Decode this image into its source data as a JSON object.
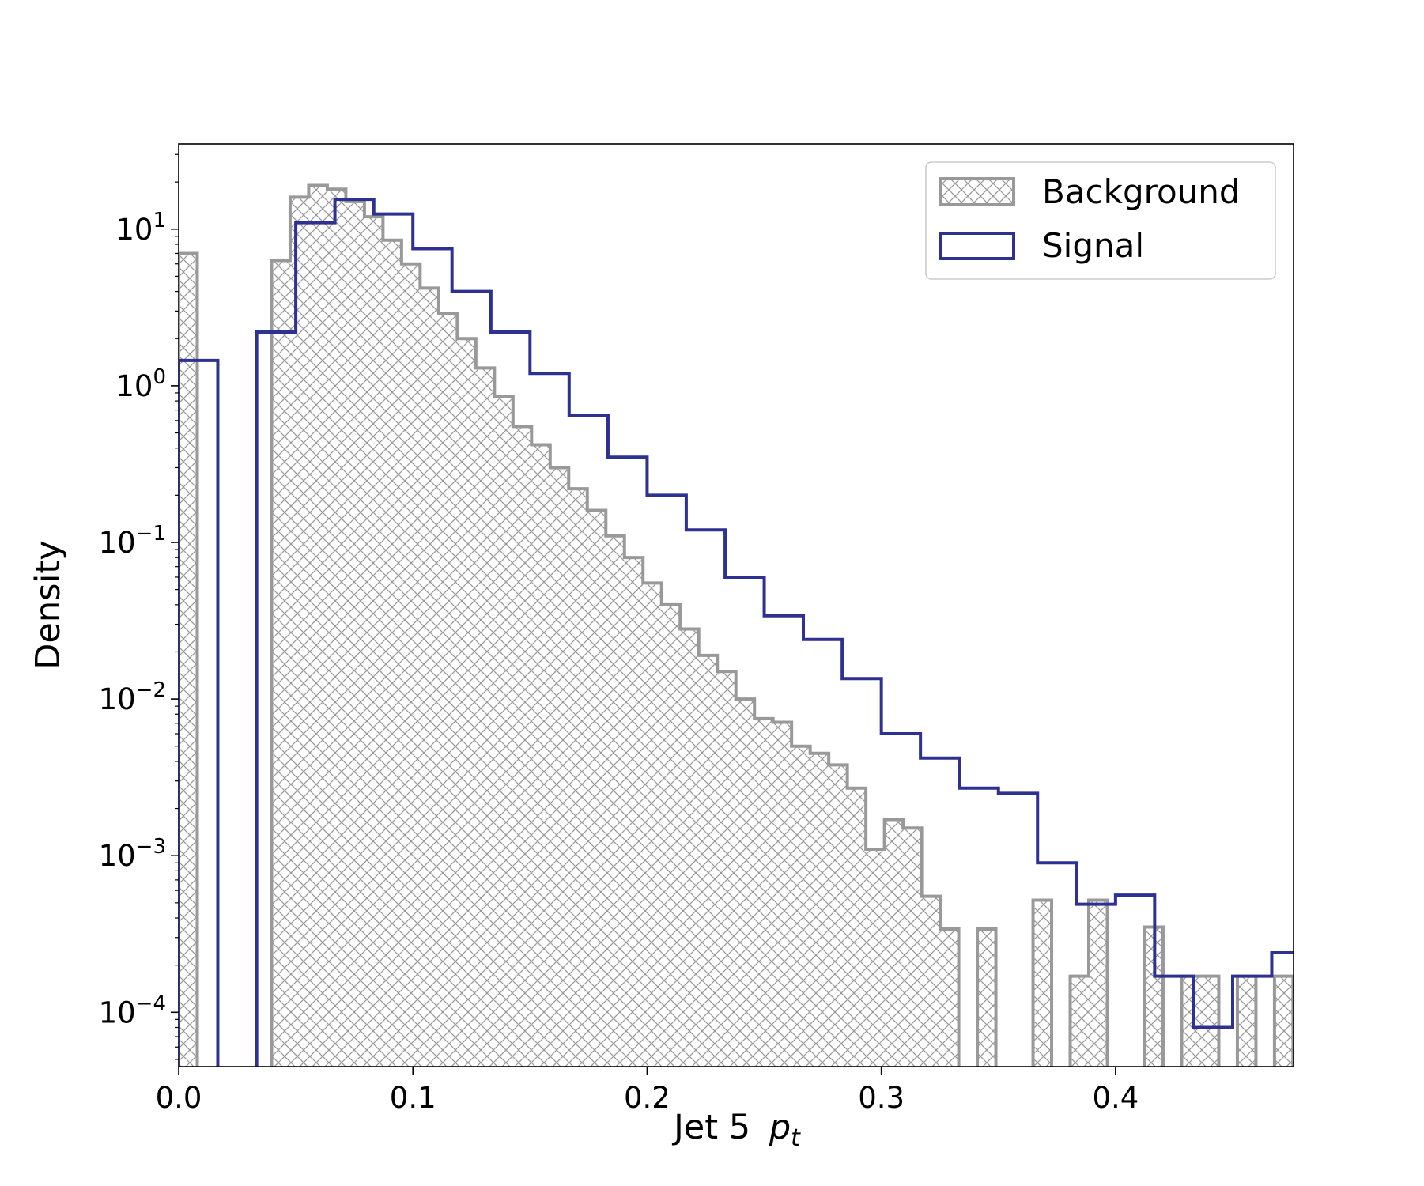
{
  "chart_data": {
    "type": "histogram",
    "xlabel": "Jet 5",
    "xlabel_symbol": "p",
    "xlabel_subscript": "t",
    "ylabel": "Density",
    "xlim": [
      0.0,
      0.476
    ],
    "ylim": [
      4.5e-05,
      35
    ],
    "yscale": "log",
    "grid": false,
    "legend_position": "upper right",
    "x_ticks": [
      {
        "value": 0.0,
        "label": "0.0"
      },
      {
        "value": 0.1,
        "label": "0.1"
      },
      {
        "value": 0.2,
        "label": "0.2"
      },
      {
        "value": 0.3,
        "label": "0.3"
      },
      {
        "value": 0.4,
        "label": "0.4"
      }
    ],
    "y_ticks": [
      {
        "value": 10,
        "base": "10",
        "exp": "1"
      },
      {
        "value": 1,
        "base": "10",
        "exp": "0"
      },
      {
        "value": 0.1,
        "base": "10",
        "exp": "−1"
      },
      {
        "value": 0.01,
        "base": "10",
        "exp": "−2"
      },
      {
        "value": 0.001,
        "base": "10",
        "exp": "−3"
      },
      {
        "value": 0.0001,
        "base": "10",
        "exp": "−4"
      }
    ],
    "series": [
      {
        "name": "Background",
        "style": "hatched",
        "color": "#999999",
        "bin_width": 0.00793,
        "bins_start": 0.0,
        "values": [
          7.0,
          0,
          0,
          0,
          0,
          6.3,
          16.0,
          19.0,
          18.0,
          15.0,
          12.0,
          8.5,
          6.0,
          4.2,
          2.9,
          2.0,
          1.3,
          0.85,
          0.55,
          0.42,
          0.3,
          0.22,
          0.16,
          0.11,
          0.08,
          0.055,
          0.04,
          0.028,
          0.019,
          0.015,
          0.01,
          0.0075,
          0.0071,
          0.005,
          0.0045,
          0.0038,
          0.0027,
          0.0011,
          0.0017,
          0.0015,
          0.00055,
          0.00034,
          0,
          0.00034,
          0,
          0,
          0.00052,
          0,
          0.00017,
          0.00052,
          0,
          0,
          0.00035,
          0,
          0.00017,
          0.00017,
          0,
          0.00017,
          0,
          0.00017
        ]
      },
      {
        "name": "Signal",
        "style": "step",
        "color": "#2e3192",
        "bin_edges": [
          0.0,
          0.0167,
          0.0333,
          0.05,
          0.0667,
          0.0833,
          0.1,
          0.1167,
          0.1333,
          0.15,
          0.1667,
          0.1833,
          0.2,
          0.2167,
          0.2333,
          0.25,
          0.2667,
          0.2833,
          0.3,
          0.3167,
          0.3333,
          0.35,
          0.3667,
          0.3833,
          0.4,
          0.4167,
          0.4333,
          0.45,
          0.4667,
          0.4833
        ],
        "values": [
          1.45,
          0,
          2.2,
          11.0,
          15.5,
          12.5,
          7.5,
          4.0,
          2.2,
          1.2,
          0.65,
          0.35,
          0.2,
          0.12,
          0.06,
          0.034,
          0.024,
          0.0135,
          0.006,
          0.0042,
          0.0027,
          0.0025,
          0.0009,
          0.00049,
          0.00056,
          0.00017,
          8e-05,
          0.00017,
          0.00024
        ]
      }
    ]
  }
}
